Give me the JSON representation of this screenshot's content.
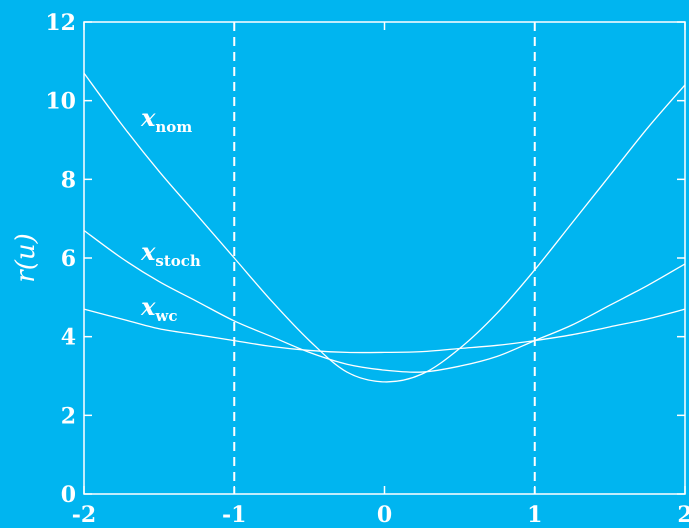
{
  "chart_data": {
    "type": "line",
    "title": "",
    "xlabel": "",
    "ylabel": "r(u)",
    "xlim": [
      -2,
      2
    ],
    "ylim": [
      0,
      12
    ],
    "x_ticks": [
      "-2",
      "-1",
      "0",
      "1",
      "2"
    ],
    "y_ticks": [
      "0",
      "2",
      "4",
      "6",
      "8",
      "10",
      "12"
    ],
    "grid": false,
    "vertical_reference_lines": [
      -1,
      1
    ],
    "colors": {
      "background": "#00b5f0",
      "foreground": "#ffffff"
    },
    "series": [
      {
        "name": "x_nom",
        "label_main": "x",
        "label_sub": "nom",
        "x": [
          -2.0,
          -1.75,
          -1.5,
          -1.25,
          -1.0,
          -0.75,
          -0.5,
          -0.25,
          0.0,
          0.25,
          0.5,
          0.75,
          1.0,
          1.25,
          1.5,
          1.75,
          2.0
        ],
        "y": [
          10.7,
          9.4,
          8.2,
          7.1,
          6.0,
          4.9,
          3.9,
          3.1,
          2.85,
          3.05,
          3.7,
          4.6,
          5.7,
          6.9,
          8.1,
          9.3,
          10.4
        ]
      },
      {
        "name": "x_stoch",
        "label_main": "x",
        "label_sub": "stoch",
        "x": [
          -2.0,
          -1.75,
          -1.5,
          -1.25,
          -1.0,
          -0.75,
          -0.5,
          -0.25,
          0.0,
          0.25,
          0.5,
          0.75,
          1.0,
          1.25,
          1.5,
          1.75,
          2.0
        ],
        "y": [
          6.7,
          6.0,
          5.4,
          4.9,
          4.4,
          4.0,
          3.6,
          3.3,
          3.15,
          3.1,
          3.25,
          3.5,
          3.9,
          4.3,
          4.8,
          5.3,
          5.85
        ]
      },
      {
        "name": "x_wc",
        "label_main": "x",
        "label_sub": "wc",
        "x": [
          -2.0,
          -1.75,
          -1.5,
          -1.25,
          -1.0,
          -0.75,
          -0.5,
          -0.25,
          0.0,
          0.25,
          0.5,
          0.75,
          1.0,
          1.25,
          1.5,
          1.75,
          2.0
        ],
        "y": [
          4.7,
          4.45,
          4.2,
          4.05,
          3.9,
          3.75,
          3.65,
          3.6,
          3.6,
          3.62,
          3.7,
          3.78,
          3.9,
          4.05,
          4.25,
          4.45,
          4.7
        ]
      }
    ],
    "annotations": [
      {
        "series": "x_nom",
        "x": -1.62,
        "y": 9.35
      },
      {
        "series": "x_stoch",
        "x": -1.62,
        "y": 5.95
      },
      {
        "series": "x_wc",
        "x": -1.62,
        "y": 4.55
      }
    ]
  }
}
